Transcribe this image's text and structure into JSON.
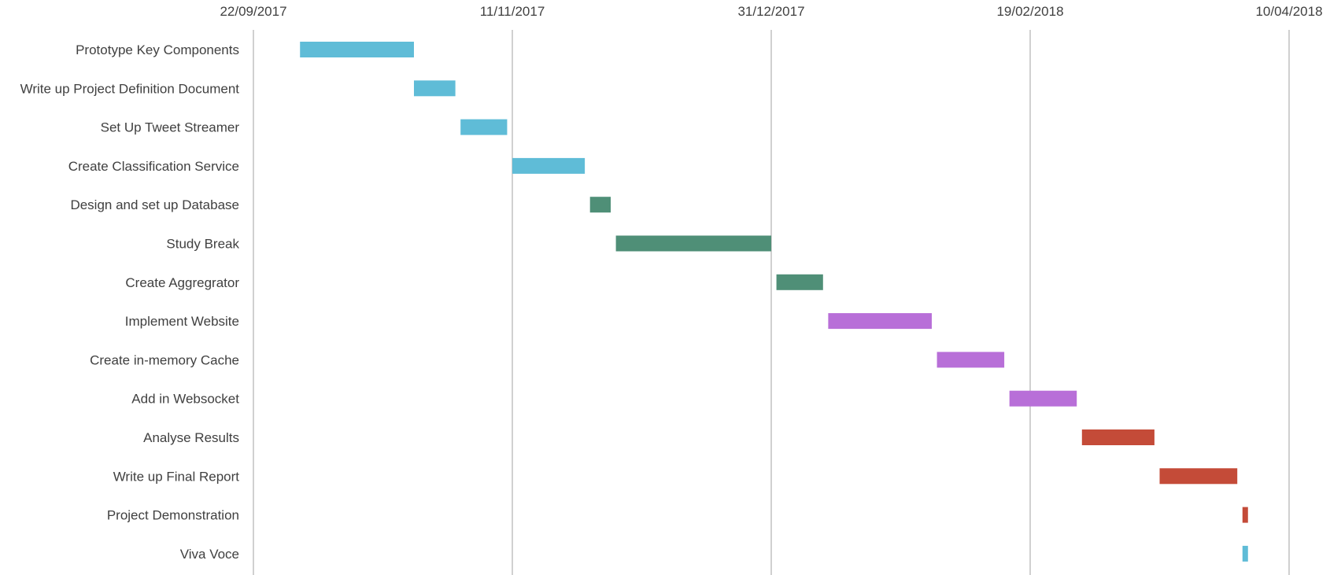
{
  "chart_data": {
    "type": "bar",
    "orientation": "horizontal-gantt",
    "title": "",
    "xlabel": "",
    "ylabel": "",
    "grid": true,
    "xlim": [
      "2017-09-22",
      "2018-04-10"
    ],
    "x_ticks": [
      "22/09/2017",
      "11/11/2017",
      "31/12/2017",
      "19/02/2018",
      "10/04/2018"
    ],
    "tasks": [
      {
        "name": "Prototype Key Components",
        "start": "2017-10-01",
        "end": "2017-10-23",
        "color": "#5fbcd7"
      },
      {
        "name": "Write up Project Definition Document",
        "start": "2017-10-23",
        "end": "2017-10-31",
        "color": "#5fbcd7"
      },
      {
        "name": "Set Up Tweet Streamer",
        "start": "2017-11-01",
        "end": "2017-11-10",
        "color": "#5fbcd7"
      },
      {
        "name": "Create Classification Service",
        "start": "2017-11-11",
        "end": "2017-11-25",
        "color": "#5fbcd7"
      },
      {
        "name": "Design and set up Database",
        "start": "2017-11-26",
        "end": "2017-11-30",
        "color": "#4f8f77"
      },
      {
        "name": "Study Break",
        "start": "2017-12-01",
        "end": "2017-12-31",
        "color": "#4f8f77"
      },
      {
        "name": "Create Aggregrator",
        "start": "2018-01-01",
        "end": "2018-01-10",
        "color": "#4f8f77"
      },
      {
        "name": "Implement Website",
        "start": "2018-01-11",
        "end": "2018-01-31",
        "color": "#b86fd8"
      },
      {
        "name": "Create in-memory Cache",
        "start": "2018-02-01",
        "end": "2018-02-14",
        "color": "#b86fd8"
      },
      {
        "name": "Add in Websocket",
        "start": "2018-02-15",
        "end": "2018-02-28",
        "color": "#b86fd8"
      },
      {
        "name": "Analyse Results",
        "start": "2018-03-01",
        "end": "2018-03-15",
        "color": "#c44b38"
      },
      {
        "name": "Write up Final Report",
        "start": "2018-03-16",
        "end": "2018-03-31",
        "color": "#c44b38"
      },
      {
        "name": "Project Demonstration",
        "start": "2018-04-01",
        "end": "2018-04-02",
        "color": "#c44b38"
      },
      {
        "name": "Viva Voce",
        "start": "2018-04-01",
        "end": "2018-04-02",
        "color": "#5fbcd7"
      }
    ]
  }
}
